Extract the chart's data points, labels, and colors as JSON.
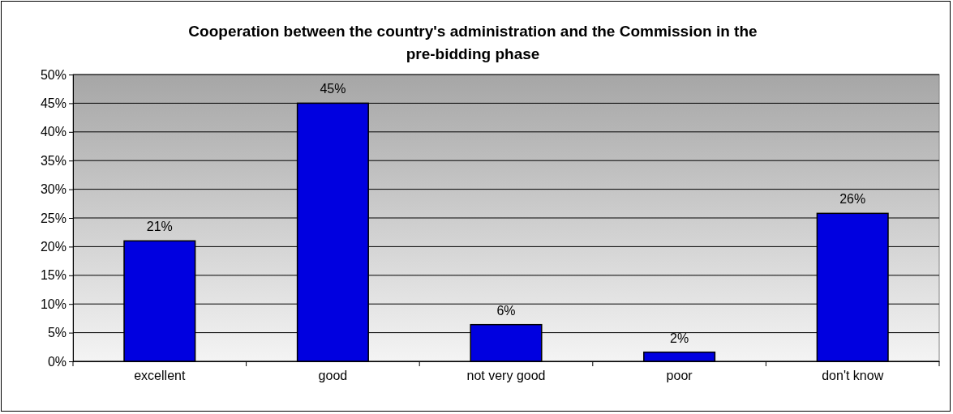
{
  "chart_data": {
    "type": "bar",
    "title": "Cooperation between the country's administration and the Commission in the pre-bidding phase",
    "categories": [
      "excellent",
      "good",
      "not very good",
      "poor",
      "don't know"
    ],
    "values": [
      21,
      45,
      6.4,
      1.6,
      25.8
    ],
    "value_labels": [
      "21%",
      "45%",
      "6%",
      "2%",
      "26%"
    ],
    "color": "#0000e0",
    "ylim": [
      0,
      50
    ],
    "yticks": [
      {
        "value": 0,
        "label": "0%"
      },
      {
        "value": 5,
        "label": "5%"
      },
      {
        "value": 10,
        "label": "10%"
      },
      {
        "value": 15,
        "label": "15%"
      },
      {
        "value": 20,
        "label": "20%"
      },
      {
        "value": 25,
        "label": "25%"
      },
      {
        "value": 30,
        "label": "30%"
      },
      {
        "value": 35,
        "label": "35%"
      },
      {
        "value": 40,
        "label": "40%"
      },
      {
        "value": 45,
        "label": "45%"
      },
      {
        "value": 50,
        "label": "50%"
      }
    ],
    "grid": "y"
  }
}
